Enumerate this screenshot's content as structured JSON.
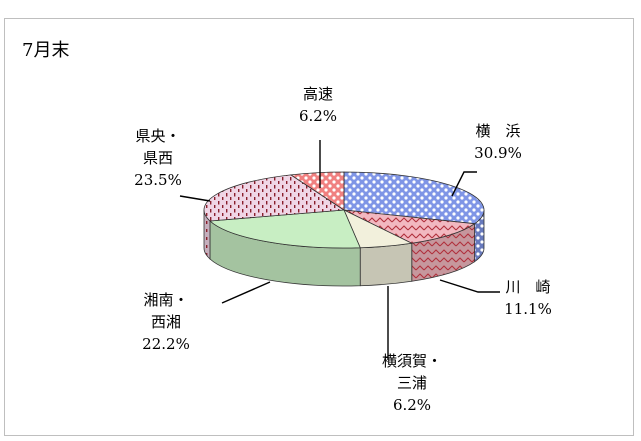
{
  "chart_title": "7月末",
  "chart_data": {
    "type": "pie",
    "three_d": true,
    "legend": "none",
    "categories": [
      "横　浜",
      "川　崎",
      "横須賀・三浦",
      "湘南・西湘",
      "県央・県西",
      "高速"
    ],
    "values": [
      30.9,
      11.1,
      6.2,
      22.2,
      23.5,
      6.2
    ],
    "value_labels": [
      "30.9%",
      "11.1%",
      "6.2%",
      "22.2%",
      "23.5%",
      "6.2%"
    ],
    "label_lines": [
      [
        "横　浜"
      ],
      [
        "川　崎"
      ],
      [
        "横須賀・",
        "三浦"
      ],
      [
        "湘南・",
        "西湘"
      ],
      [
        "県央・",
        "県西"
      ],
      [
        "高速"
      ]
    ],
    "colors": [
      "#7f95e6",
      "#f2b8c0",
      "#f2f0dc",
      "#c8eec3",
      "#f0d6e6",
      "#f08080"
    ],
    "pattern_colors": [
      "#ffffff",
      "#b0303c",
      "#ffffff",
      "#ffffff",
      "#8a1f2c",
      "#ffffff"
    ],
    "patterns": [
      "dots",
      "zigzag",
      "plain",
      "plain",
      "dashes",
      "dots"
    ]
  }
}
